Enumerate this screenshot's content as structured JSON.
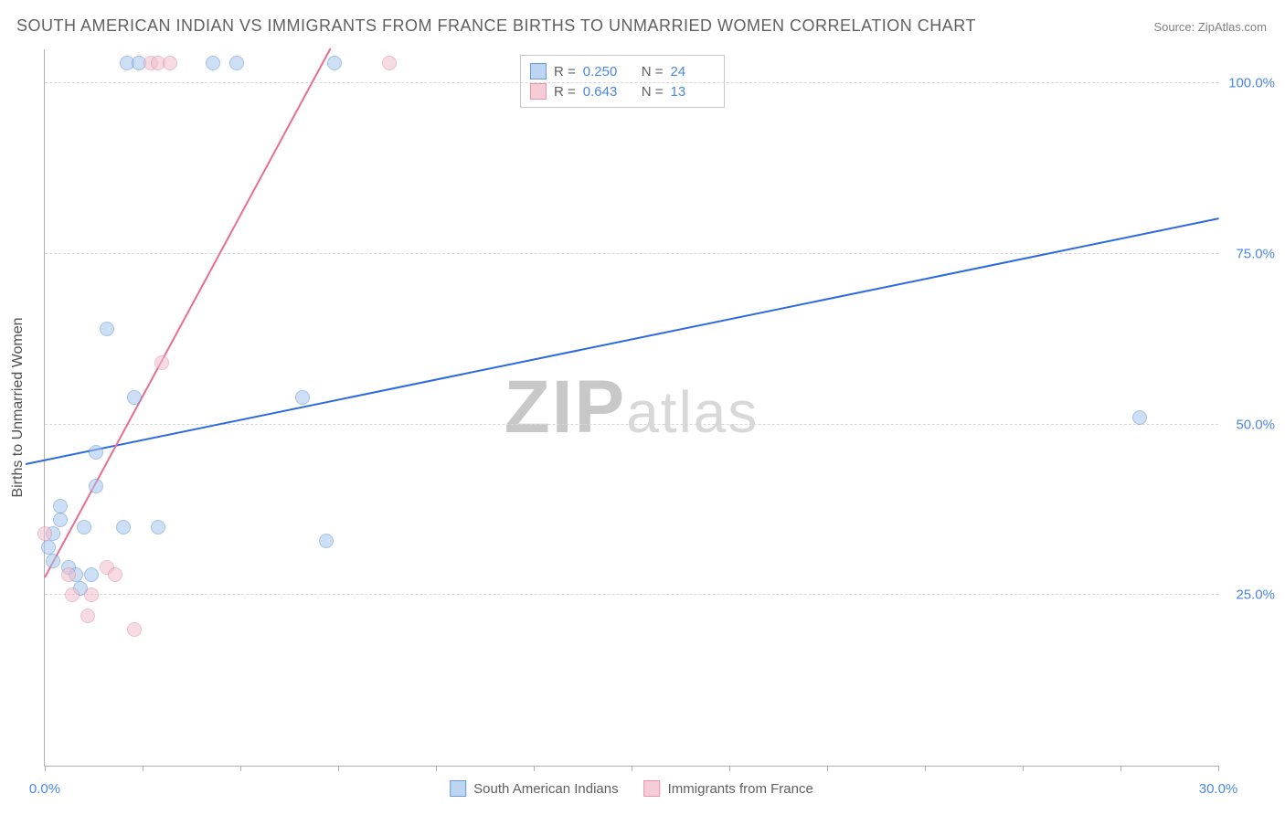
{
  "title": "SOUTH AMERICAN INDIAN VS IMMIGRANTS FROM FRANCE BIRTHS TO UNMARRIED WOMEN CORRELATION CHART",
  "source_prefix": "Source: ",
  "source": "ZipAtlas.com",
  "yaxis_label": "Births to Unmarried Women",
  "watermark_zip": "ZIP",
  "watermark_atlas": "atlas",
  "chart": {
    "type": "scatter",
    "xlim": [
      0,
      30
    ],
    "ylim": [
      0,
      105
    ],
    "background_color": "#ffffff",
    "grid_color": "#d8d8d8",
    "axis_color": "#b0b0b0",
    "ytick_positions": [
      25,
      50,
      75,
      100
    ],
    "ytick_labels": [
      "25.0%",
      "50.0%",
      "75.0%",
      "100.0%"
    ],
    "xtick_positions": [
      0,
      2.5,
      5,
      7.5,
      10,
      12.5,
      15,
      17.5,
      20,
      22.5,
      25,
      27.5,
      30
    ],
    "xtick_labels": {
      "0": "0.0%",
      "30": "30.0%"
    },
    "marker_radius": 7,
    "marker_opacity": 0.55,
    "label_fontsize": 15,
    "title_fontsize": 18,
    "title_color": "#606060",
    "tick_label_color": "#4a86e8"
  },
  "series": [
    {
      "name": "South American Indians",
      "color_fill": "#a6c6ee",
      "color_stroke": "#5b8fd6",
      "swatch_fill": "#bdd5f0",
      "swatch_stroke": "#6a9ad8",
      "R": "0.250",
      "N": "24",
      "trend": {
        "x1": -0.5,
        "y1": 44.0,
        "x2": 30.0,
        "y2": 80.0,
        "color": "#2d6ae0",
        "width": 2
      },
      "points": [
        [
          2.1,
          103
        ],
        [
          2.4,
          103
        ],
        [
          4.3,
          103
        ],
        [
          4.9,
          103
        ],
        [
          7.4,
          103
        ],
        [
          1.6,
          64
        ],
        [
          2.3,
          54
        ],
        [
          6.6,
          54
        ],
        [
          28.0,
          51
        ],
        [
          1.3,
          46
        ],
        [
          1.3,
          41
        ],
        [
          0.4,
          38
        ],
        [
          0.4,
          36
        ],
        [
          1.0,
          35
        ],
        [
          2.0,
          35
        ],
        [
          2.9,
          35
        ],
        [
          0.2,
          34
        ],
        [
          7.2,
          33
        ],
        [
          0.1,
          32
        ],
        [
          0.2,
          30
        ],
        [
          0.6,
          29
        ],
        [
          0.8,
          28
        ],
        [
          1.2,
          28
        ],
        [
          0.9,
          26
        ]
      ]
    },
    {
      "name": "Immigrants from France",
      "color_fill": "#f2bfcb",
      "color_stroke": "#e48ba3",
      "swatch_fill": "#f5cdd7",
      "swatch_stroke": "#e695aa",
      "R": "0.643",
      "N": "13",
      "trend": {
        "x1": 0.0,
        "y1": 27.5,
        "x2": 7.3,
        "y2": 105.0,
        "color": "#e86d8f",
        "width": 2
      },
      "points": [
        [
          2.7,
          103
        ],
        [
          2.9,
          103
        ],
        [
          3.2,
          103
        ],
        [
          8.8,
          103
        ],
        [
          3.0,
          59
        ],
        [
          0.0,
          34
        ],
        [
          1.6,
          29
        ],
        [
          0.6,
          28
        ],
        [
          1.8,
          28
        ],
        [
          0.7,
          25
        ],
        [
          1.2,
          25
        ],
        [
          1.1,
          22
        ],
        [
          2.3,
          20
        ]
      ]
    }
  ],
  "legend_top": {
    "r_label": "R =",
    "n_label": "N ="
  },
  "bottom_legend": {
    "items": [
      "South American Indians",
      "Immigrants from France"
    ]
  }
}
